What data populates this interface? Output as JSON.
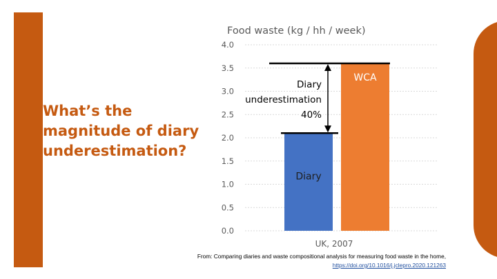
{
  "question": "What’s the magnitude of diary underestimation?",
  "chart_data": {
    "type": "bar",
    "title": "Food waste (kg / hh / week)",
    "xlabel": "UK, 2007",
    "ylabel": "",
    "ylim": [
      0,
      4
    ],
    "yticks": [
      "0.0",
      "0.5",
      "1.0",
      "1.5",
      "2.0",
      "2.5",
      "3.0",
      "3.5",
      "4.0"
    ],
    "grid": true,
    "categories": [
      "Diary",
      "WCA"
    ],
    "values": [
      2.1,
      3.6
    ],
    "colors": [
      "#4472c4",
      "#ed7d31"
    ],
    "bar_labels": [
      "Diary",
      "WCA"
    ],
    "annotation": {
      "lines": [
        "Diary",
        "underestimation",
        "40%"
      ],
      "from": 2.1,
      "to": 3.6
    }
  },
  "source": {
    "text": "From: Comparing diaries and waste compositional analysis for measuring food waste in the home,",
    "url": "https://doi.org/10.1016/j.jclepro.2020.121263"
  },
  "colors": {
    "accent": "#c55a11",
    "question_text": "#c55a11"
  }
}
